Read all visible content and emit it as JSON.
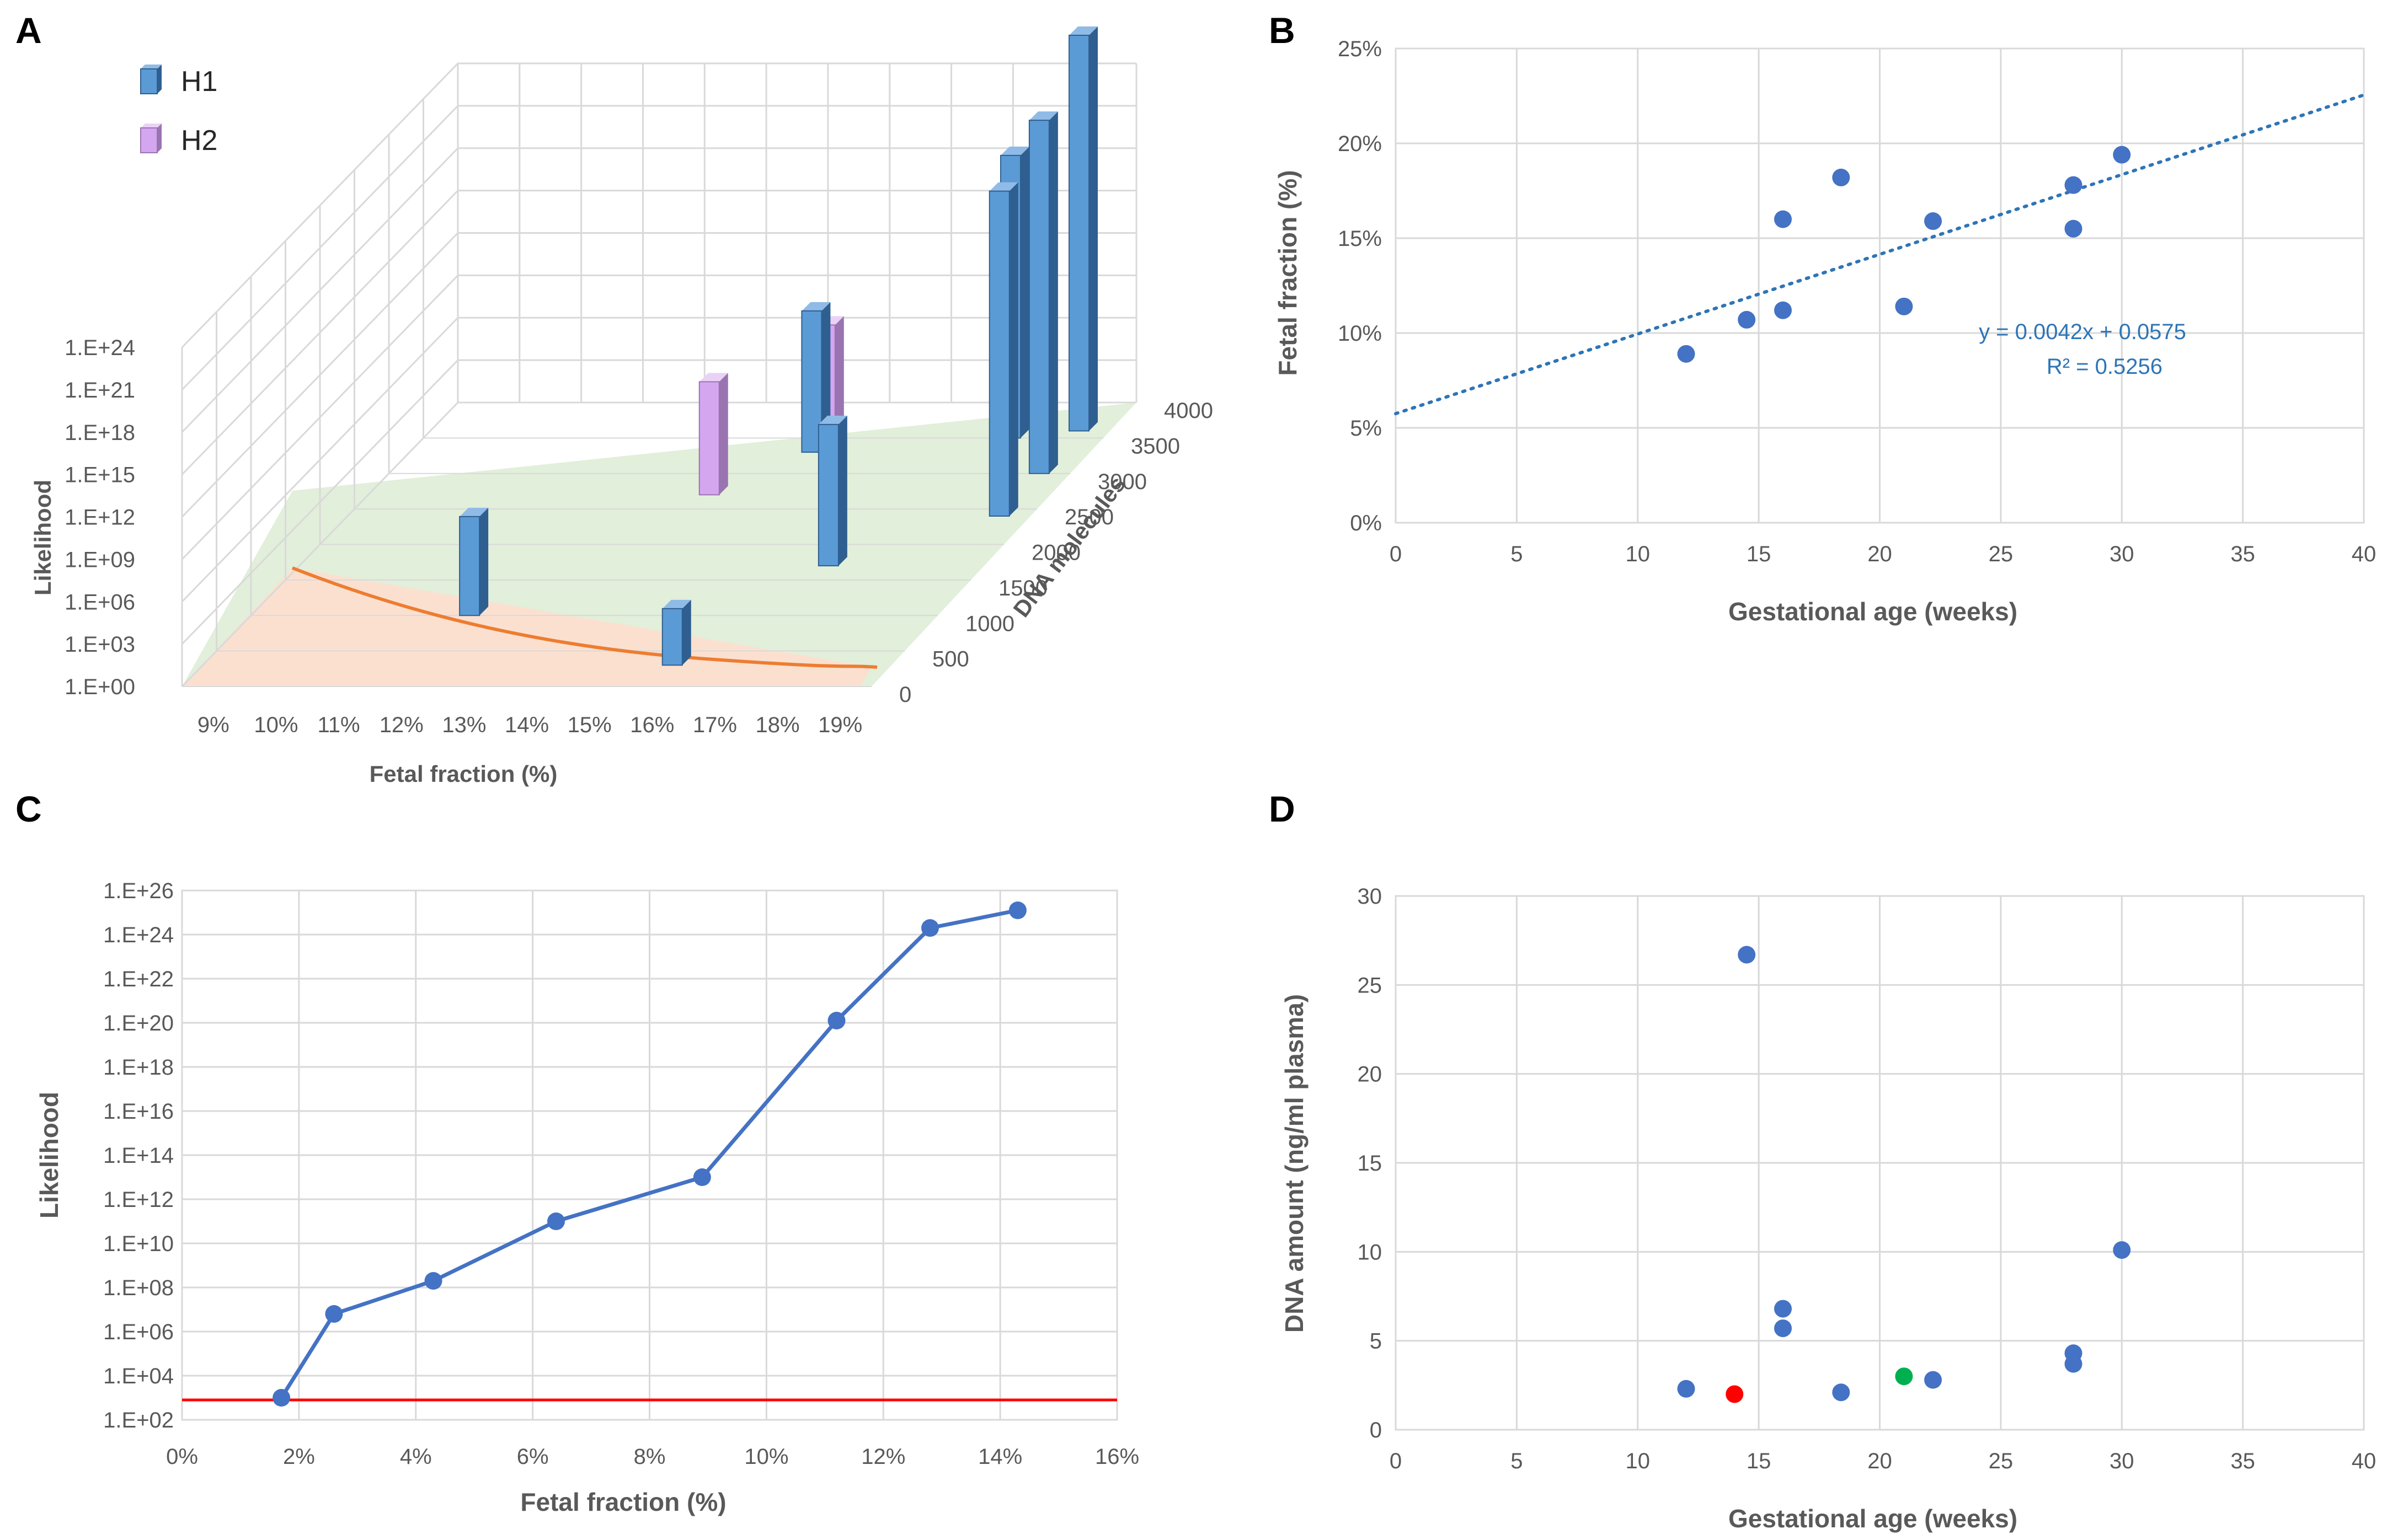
{
  "panels": {
    "a": "A",
    "b": "B",
    "c": "C",
    "d": "D"
  },
  "colors": {
    "h1": "#5B9BD5",
    "h2": "#D5A6F0",
    "point": "#4472C4",
    "line": "#4472C4",
    "trend": "#2E75B6",
    "threshold": "#FF0000",
    "highlight_red": "#FF0000",
    "highlight_green": "#00B050",
    "floor_green": "#E2EFDA",
    "floor_orange": "#FBE0D0",
    "curve_orange": "#ED7D31"
  },
  "chart_data": [
    {
      "id": "A",
      "type": "bar3d",
      "title": "",
      "zlabel": "Likelihood",
      "xlabel": "Fetal fraction (%)",
      "ylabel": "DNA molecules",
      "z_ticks": [
        "1.E+00",
        "1.E+03",
        "1.E+06",
        "1.E+09",
        "1.E+12",
        "1.E+15",
        "1.E+18",
        "1.E+21",
        "1.E+24"
      ],
      "x_ticks": [
        "9%",
        "10%",
        "11%",
        "12%",
        "13%",
        "14%",
        "15%",
        "16%",
        "17%",
        "18%",
        "19%"
      ],
      "y_ticks": [
        "0",
        "500",
        "1000",
        "1500",
        "2000",
        "2500",
        "3000",
        "3500",
        "4000"
      ],
      "legend": [
        {
          "name": "H1",
          "color": "#5B9BD5"
        },
        {
          "name": "H2",
          "color": "#D5A6F0"
        }
      ],
      "series": [
        {
          "name": "H1",
          "bars": [
            {
              "ff": 12,
              "dna": 1000,
              "log_likelihood": 7
            },
            {
              "ff": 15,
              "dna": 3300,
              "log_likelihood": 10
            },
            {
              "ff": 16,
              "dna": 300,
              "log_likelihood": 4
            },
            {
              "ff": 17,
              "dna": 1700,
              "log_likelihood": 10
            },
            {
              "ff": 18,
              "dna": 3500,
              "log_likelihood": 20
            },
            {
              "ff": 19,
              "dna": 2400,
              "log_likelihood": 23
            },
            {
              "ff": 19,
              "dna": 3600,
              "log_likelihood": 28
            },
            {
              "ff": 19,
              "dna": 3000,
              "log_likelihood": 25
            }
          ]
        },
        {
          "name": "H2",
          "bars": [
            {
              "ff": 14,
              "dna": 2700,
              "log_likelihood": 8
            },
            {
              "ff": 15,
              "dna": 3500,
              "log_likelihood": 8
            }
          ]
        }
      ]
    },
    {
      "id": "B",
      "type": "scatter",
      "xlabel": "Gestational age (weeks)",
      "ylabel": "Fetal fraction (%)",
      "xlim": [
        0,
        40
      ],
      "ylim": [
        0,
        0.25
      ],
      "x_ticks": [
        "0",
        "5",
        "10",
        "15",
        "20",
        "25",
        "30",
        "35",
        "40"
      ],
      "y_ticks": [
        "0%",
        "5%",
        "10%",
        "15%",
        "20%",
        "25%"
      ],
      "points": [
        {
          "x": 12,
          "y": 0.089
        },
        {
          "x": 14.5,
          "y": 0.107
        },
        {
          "x": 16,
          "y": 0.112
        },
        {
          "x": 16,
          "y": 0.16
        },
        {
          "x": 18.4,
          "y": 0.182
        },
        {
          "x": 21,
          "y": 0.114
        },
        {
          "x": 22.2,
          "y": 0.159
        },
        {
          "x": 28,
          "y": 0.178
        },
        {
          "x": 28,
          "y": 0.155
        },
        {
          "x": 30,
          "y": 0.194
        }
      ],
      "trendline": {
        "type": "linear",
        "slope": 0.0042,
        "intercept": 0.0575,
        "style": "dotted"
      },
      "equation": "y = 0.0042x + 0.0575",
      "r_squared": "R² = 0.5256"
    },
    {
      "id": "C",
      "type": "line",
      "xlabel": "Fetal fraction (%)",
      "ylabel": "Likelihood",
      "xlim": [
        0,
        0.16
      ],
      "ylim_log10": [
        2,
        26
      ],
      "x_ticks": [
        "0%",
        "2%",
        "4%",
        "6%",
        "8%",
        "10%",
        "12%",
        "14%",
        "16%"
      ],
      "y_ticks": [
        "1.E+02",
        "1.E+04",
        "1.E+06",
        "1.E+08",
        "1.E+10",
        "1.E+12",
        "1.E+14",
        "1.E+16",
        "1.E+18",
        "1.E+20",
        "1.E+22",
        "1.E+24",
        "1.E+26"
      ],
      "series": [
        {
          "name": "Likelihood",
          "log10_values": true,
          "points": [
            {
              "x": 0.017,
              "y": 3.0
            },
            {
              "x": 0.026,
              "y": 6.8
            },
            {
              "x": 0.043,
              "y": 8.3
            },
            {
              "x": 0.064,
              "y": 11.0
            },
            {
              "x": 0.089,
              "y": 13.0
            },
            {
              "x": 0.112,
              "y": 20.1
            },
            {
              "x": 0.128,
              "y": 24.3
            },
            {
              "x": 0.143,
              "y": 25.1
            }
          ]
        }
      ],
      "threshold_log10": 2.9
    },
    {
      "id": "D",
      "type": "scatter",
      "xlabel": "Gestational age (weeks)",
      "ylabel": "DNA amount (ng/ml plasma)",
      "xlim": [
        0,
        40
      ],
      "ylim": [
        0,
        30
      ],
      "x_ticks": [
        "0",
        "5",
        "10",
        "15",
        "20",
        "25",
        "30",
        "35",
        "40"
      ],
      "y_ticks": [
        "0",
        "5",
        "10",
        "15",
        "20",
        "25",
        "30"
      ],
      "points": [
        {
          "x": 12,
          "y": 2.3,
          "color": "#4472C4"
        },
        {
          "x": 14,
          "y": 2.0,
          "color": "#FF0000"
        },
        {
          "x": 14.5,
          "y": 26.7,
          "color": "#4472C4"
        },
        {
          "x": 16,
          "y": 6.8,
          "color": "#4472C4"
        },
        {
          "x": 16,
          "y": 5.7,
          "color": "#4472C4"
        },
        {
          "x": 18.4,
          "y": 2.1,
          "color": "#4472C4"
        },
        {
          "x": 21,
          "y": 3.0,
          "color": "#00B050"
        },
        {
          "x": 22.2,
          "y": 2.8,
          "color": "#4472C4"
        },
        {
          "x": 28,
          "y": 4.3,
          "color": "#4472C4"
        },
        {
          "x": 28,
          "y": 3.7,
          "color": "#4472C4"
        },
        {
          "x": 30,
          "y": 10.1,
          "color": "#4472C4"
        }
      ]
    }
  ]
}
